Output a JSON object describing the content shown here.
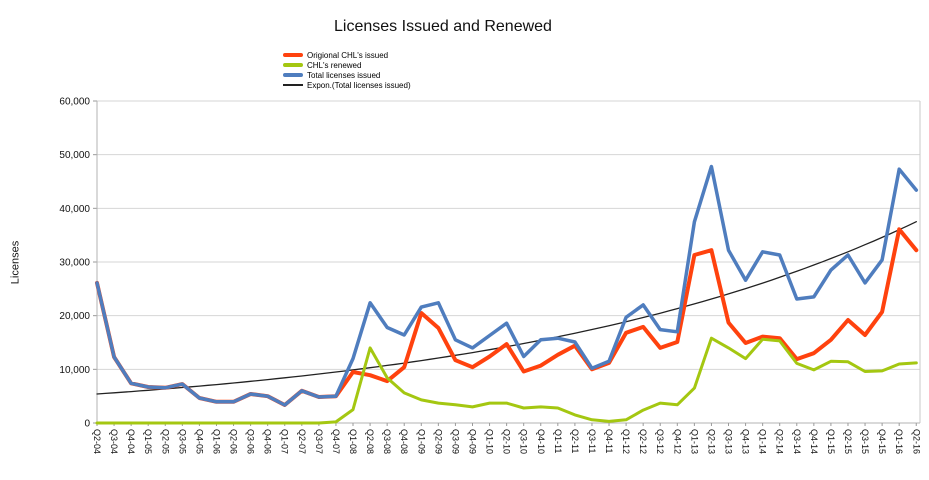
{
  "chart_data": {
    "type": "line",
    "title": "Licenses Issued and Renewed",
    "ylabel": "Licenses",
    "ylim": [
      0,
      60000
    ],
    "grid": true,
    "legend_position": "top-left-below-title",
    "y_ticks": [
      "0",
      "10,000",
      "20,000",
      "30,000",
      "40,000",
      "50,000",
      "60,000"
    ],
    "categories": [
      "Q2-04",
      "Q3-04",
      "Q4-04",
      "Q1-05",
      "Q2-05",
      "Q3-05",
      "Q4-05",
      "Q1-06",
      "Q2-06",
      "Q3-06",
      "Q4-06",
      "Q1-07",
      "Q2-07",
      "Q3-07",
      "Q4-07",
      "Q1-08",
      "Q2-08",
      "Q3-08",
      "Q4-08",
      "Q1-09",
      "Q2-09",
      "Q3-09",
      "Q4-09",
      "Q1-10",
      "Q2-10",
      "Q3-10",
      "Q4-10",
      "Q1-11",
      "Q2-11",
      "Q3-11",
      "Q4-11",
      "Q1-12",
      "Q2-12",
      "Q3-12",
      "Q4-12",
      "Q1-13",
      "Q2-13",
      "Q3-13",
      "Q4-13",
      "Q1-14",
      "Q2-14",
      "Q3-14",
      "Q4-14",
      "Q1-15",
      "Q2-15",
      "Q3-15",
      "Q4-15",
      "Q1-16",
      "Q2-16"
    ],
    "series": [
      {
        "name": "Origional CHL's issued",
        "color": "#FF420E",
        "stroke_width": 4,
        "values": [
          26100,
          12300,
          7400,
          6700,
          6550,
          7250,
          4650,
          3950,
          3950,
          5400,
          5000,
          3350,
          6000,
          4850,
          5000,
          9500,
          8900,
          7800,
          10400,
          20500,
          17700,
          11700,
          10400,
          12400,
          14700,
          9600,
          10700,
          12700,
          14400,
          10000,
          11200,
          16800,
          17900,
          14000,
          15100,
          31300,
          32200,
          18700,
          14900,
          16100,
          15800,
          11900,
          13000,
          15500,
          19200,
          16400,
          20700,
          36100,
          32200
        ]
      },
      {
        "name": "CHL's renewed",
        "color": "#A4C711",
        "stroke_width": 3,
        "values": [
          0,
          0,
          0,
          0,
          0,
          0,
          0,
          0,
          0,
          0,
          0,
          0,
          0,
          0,
          200,
          2500,
          14000,
          8400,
          5600,
          4300,
          3700,
          3400,
          3000,
          3700,
          3700,
          2800,
          3000,
          2800,
          1500,
          600,
          300,
          600,
          2400,
          3700,
          3400,
          6500,
          15800,
          14000,
          12000,
          15600,
          15300,
          11100,
          9900,
          11500,
          11400,
          9600,
          9700,
          11000,
          11200
        ]
      },
      {
        "name": "Total licenses issued",
        "color": "#4F7DBE",
        "stroke_width": 3.5,
        "values": [
          26100,
          12300,
          7400,
          6700,
          6550,
          7250,
          4650,
          3950,
          3950,
          5400,
          5000,
          3350,
          6000,
          4850,
          5000,
          12000,
          22400,
          17800,
          16400,
          21600,
          22400,
          15500,
          14000,
          16300,
          18600,
          12400,
          15500,
          15800,
          15100,
          10200,
          11500,
          19700,
          22000,
          17400,
          17000,
          37500,
          47800,
          32200,
          26600,
          31900,
          31300,
          23100,
          23500,
          28500,
          31300,
          26100,
          30400,
          47300,
          43400
        ]
      },
      {
        "name": "Expon.(Total licenses issued)",
        "color": "#222222",
        "stroke_width": 1.3,
        "trend": {
          "kind": "exponential",
          "start": 5400,
          "end": 37500
        }
      }
    ]
  }
}
